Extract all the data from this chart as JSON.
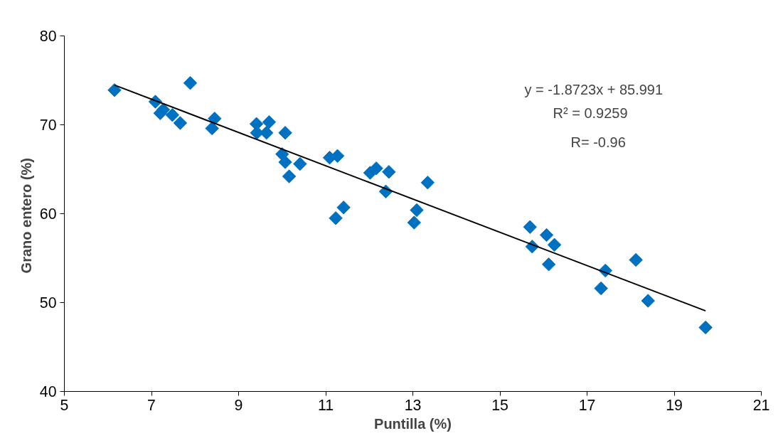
{
  "chart_data": {
    "type": "scatter",
    "xlabel": "Puntilla (%)",
    "ylabel": "Grano  entero (%)",
    "xlim": [
      5,
      21
    ],
    "xticks": [
      5,
      7,
      9,
      11,
      13,
      15,
      17,
      19,
      21
    ],
    "ylim": [
      40,
      80
    ],
    "yticks": [
      40,
      50,
      60,
      70,
      80
    ],
    "grid": false,
    "series": [
      {
        "marker": "diamond",
        "color": "#0070c0",
        "x": [
          6.15,
          7.09,
          7.2,
          7.27,
          7.48,
          7.66,
          7.89,
          8.39,
          8.45,
          9.41,
          9.42,
          9.64,
          9.7,
          10.07,
          10.0,
          10.07,
          10.16,
          10.41,
          11.09,
          11.27,
          11.23,
          11.41,
          12.02,
          12.16,
          12.45,
          12.38,
          13.03,
          13.09,
          13.34,
          15.69,
          15.74,
          16.07,
          16.12,
          16.25,
          17.32,
          17.42,
          18.12,
          18.4,
          19.72
        ],
        "values": [
          73.9,
          72.6,
          71.3,
          71.7,
          71.1,
          70.2,
          74.7,
          69.6,
          70.7,
          70.1,
          69.1,
          69.1,
          70.3,
          69.1,
          66.7,
          65.8,
          64.2,
          65.6,
          66.3,
          66.5,
          59.5,
          60.7,
          64.6,
          65.1,
          64.7,
          62.5,
          59.0,
          60.4,
          63.5,
          58.5,
          56.3,
          57.6,
          54.3,
          56.5,
          51.6,
          53.6,
          54.8,
          50.2,
          47.2
        ]
      },
      {
        "type": "line",
        "color": "#000000",
        "x": [
          6.15,
          19.72
        ],
        "values": [
          74.47,
          49.07
        ]
      }
    ],
    "annotations": [
      {
        "text": "y = -1.8723x + 85.991"
      },
      {
        "text": "R² = 0.9259"
      },
      {
        "text": "R= -0.96"
      }
    ]
  }
}
